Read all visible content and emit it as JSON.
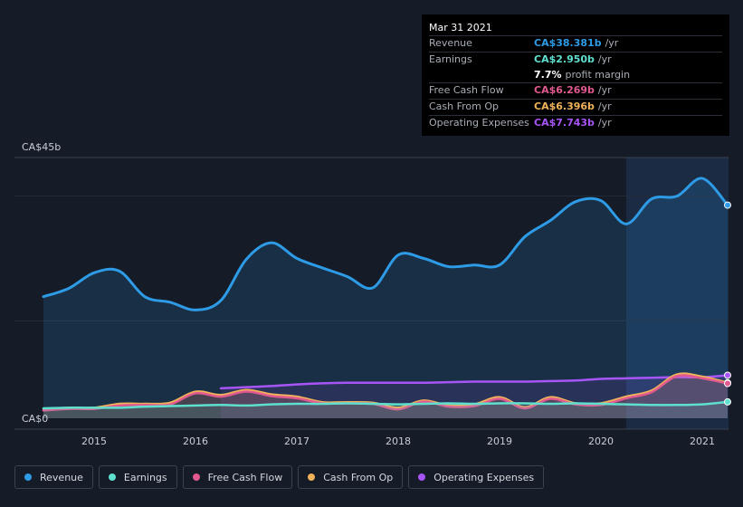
{
  "tooltip": {
    "date": "Mar 31 2021",
    "rows": [
      {
        "label": "Revenue",
        "value": "CA$38.381b",
        "unit": "/yr",
        "color": "#2e9be6"
      },
      {
        "label": "Earnings",
        "value": "CA$2.950b",
        "unit": "/yr",
        "color": "#5fe0cf"
      },
      {
        "label": "",
        "value": "7.7%",
        "unit": "profit margin",
        "color": "#ffffff"
      },
      {
        "label": "Free Cash Flow",
        "value": "CA$6.269b",
        "unit": "/yr",
        "color": "#e0598f"
      },
      {
        "label": "Cash From Op",
        "value": "CA$6.396b",
        "unit": "/yr",
        "color": "#f0b25a"
      },
      {
        "label": "Operating Expenses",
        "value": "CA$7.743b",
        "unit": "/yr",
        "color": "#a855f7"
      }
    ]
  },
  "legend": [
    {
      "label": "Revenue",
      "color": "#2e9be6"
    },
    {
      "label": "Earnings",
      "color": "#5fe0cf"
    },
    {
      "label": "Free Cash Flow",
      "color": "#e0598f"
    },
    {
      "label": "Cash From Op",
      "color": "#f0b25a"
    },
    {
      "label": "Operating Expenses",
      "color": "#a855f7"
    }
  ],
  "chart_data": {
    "type": "area",
    "ymax_label": "CA$45b",
    "ymin_label": "CA$0",
    "ylim": [
      0,
      45
    ],
    "xlim": [
      2014.5,
      2021.25
    ],
    "x_ticks": [
      "2015",
      "2016",
      "2017",
      "2018",
      "2019",
      "2020",
      "2021"
    ],
    "x_tick_values": [
      2015,
      2016,
      2017,
      2018,
      2019,
      2020,
      2021
    ],
    "highlight_from": 2020.25,
    "series": [
      {
        "name": "Revenue",
        "color": "#2e9be6",
        "x": [
          2014.5,
          2014.75,
          2015.0,
          2015.25,
          2015.5,
          2015.75,
          2016.0,
          2016.25,
          2016.5,
          2016.75,
          2017.0,
          2017.25,
          2017.5,
          2017.75,
          2018.0,
          2018.25,
          2018.5,
          2018.75,
          2019.0,
          2019.25,
          2019.5,
          2019.75,
          2020.0,
          2020.25,
          2020.5,
          2020.75,
          2021.0,
          2021.25
        ],
        "y": [
          21.9,
          23.4,
          26.2,
          26.5,
          21.9,
          20.9,
          19.5,
          21.2,
          28.6,
          31.6,
          28.8,
          27.1,
          25.5,
          23.5,
          29.4,
          28.8,
          27.3,
          27.6,
          27.6,
          32.7,
          35.6,
          39.0,
          39.2,
          35.0,
          39.5,
          40.0,
          43.2,
          38.381
        ]
      },
      {
        "name": "Operating Expenses",
        "color": "#a855f7",
        "x": [
          2016.25,
          2016.5,
          2016.75,
          2017.0,
          2017.25,
          2017.5,
          2017.75,
          2018.0,
          2018.25,
          2018.5,
          2018.75,
          2019.0,
          2019.25,
          2019.5,
          2019.75,
          2020.0,
          2020.25,
          2020.5,
          2020.75,
          2021.0,
          2021.25
        ],
        "y": [
          5.4,
          5.6,
          5.8,
          6.1,
          6.3,
          6.4,
          6.4,
          6.4,
          6.4,
          6.5,
          6.6,
          6.6,
          6.6,
          6.7,
          6.8,
          7.1,
          7.2,
          7.3,
          7.4,
          7.4,
          7.743
        ]
      },
      {
        "name": "Cash From Op",
        "color": "#f0b25a",
        "x": [
          2014.5,
          2014.75,
          2015.0,
          2015.25,
          2015.5,
          2015.75,
          2016.0,
          2016.25,
          2016.5,
          2016.75,
          2017.0,
          2017.25,
          2017.5,
          2017.75,
          2018.0,
          2018.25,
          2018.5,
          2018.75,
          2019.0,
          2019.25,
          2019.5,
          2019.75,
          2020.0,
          2020.25,
          2020.5,
          2020.75,
          2021.0,
          2021.25
        ],
        "y": [
          1.6,
          1.9,
          1.9,
          2.6,
          2.6,
          2.8,
          4.8,
          4.2,
          5.1,
          4.3,
          3.9,
          2.9,
          2.9,
          2.8,
          1.9,
          3.2,
          2.3,
          2.5,
          3.8,
          2.0,
          3.8,
          2.7,
          2.7,
          3.9,
          5.0,
          7.9,
          7.5,
          6.396
        ]
      },
      {
        "name": "Free Cash Flow",
        "color": "#e0598f",
        "x": [
          2014.5,
          2014.75,
          2015.0,
          2015.25,
          2015.5,
          2015.75,
          2016.0,
          2016.25,
          2016.5,
          2016.75,
          2017.0,
          2017.25,
          2017.5,
          2017.75,
          2018.0,
          2018.25,
          2018.5,
          2018.75,
          2019.0,
          2019.25,
          2019.5,
          2019.75,
          2020.0,
          2020.25,
          2020.5,
          2020.75,
          2021.0,
          2021.25
        ],
        "y": [
          1.4,
          1.7,
          1.7,
          2.3,
          2.4,
          2.5,
          4.5,
          3.9,
          4.8,
          4.0,
          3.6,
          2.7,
          2.7,
          2.6,
          1.6,
          3.0,
          2.1,
          2.2,
          3.5,
          1.8,
          3.5,
          2.5,
          2.4,
          3.6,
          4.7,
          7.6,
          7.2,
          6.269
        ]
      },
      {
        "name": "Earnings",
        "color": "#5fe0cf",
        "x": [
          2014.5,
          2014.75,
          2015.0,
          2015.25,
          2015.5,
          2015.75,
          2016.0,
          2016.25,
          2016.5,
          2016.75,
          2017.0,
          2017.25,
          2017.5,
          2017.75,
          2018.0,
          2018.25,
          2018.5,
          2018.75,
          2019.0,
          2019.25,
          2019.5,
          2019.75,
          2020.0,
          2020.25,
          2020.5,
          2020.75,
          2021.0,
          2021.25
        ],
        "y": [
          1.8,
          1.9,
          1.9,
          1.9,
          2.1,
          2.2,
          2.3,
          2.4,
          2.3,
          2.5,
          2.6,
          2.6,
          2.7,
          2.6,
          2.5,
          2.6,
          2.7,
          2.6,
          2.7,
          2.7,
          2.6,
          2.7,
          2.6,
          2.5,
          2.4,
          2.4,
          2.5,
          2.95
        ]
      }
    ]
  }
}
